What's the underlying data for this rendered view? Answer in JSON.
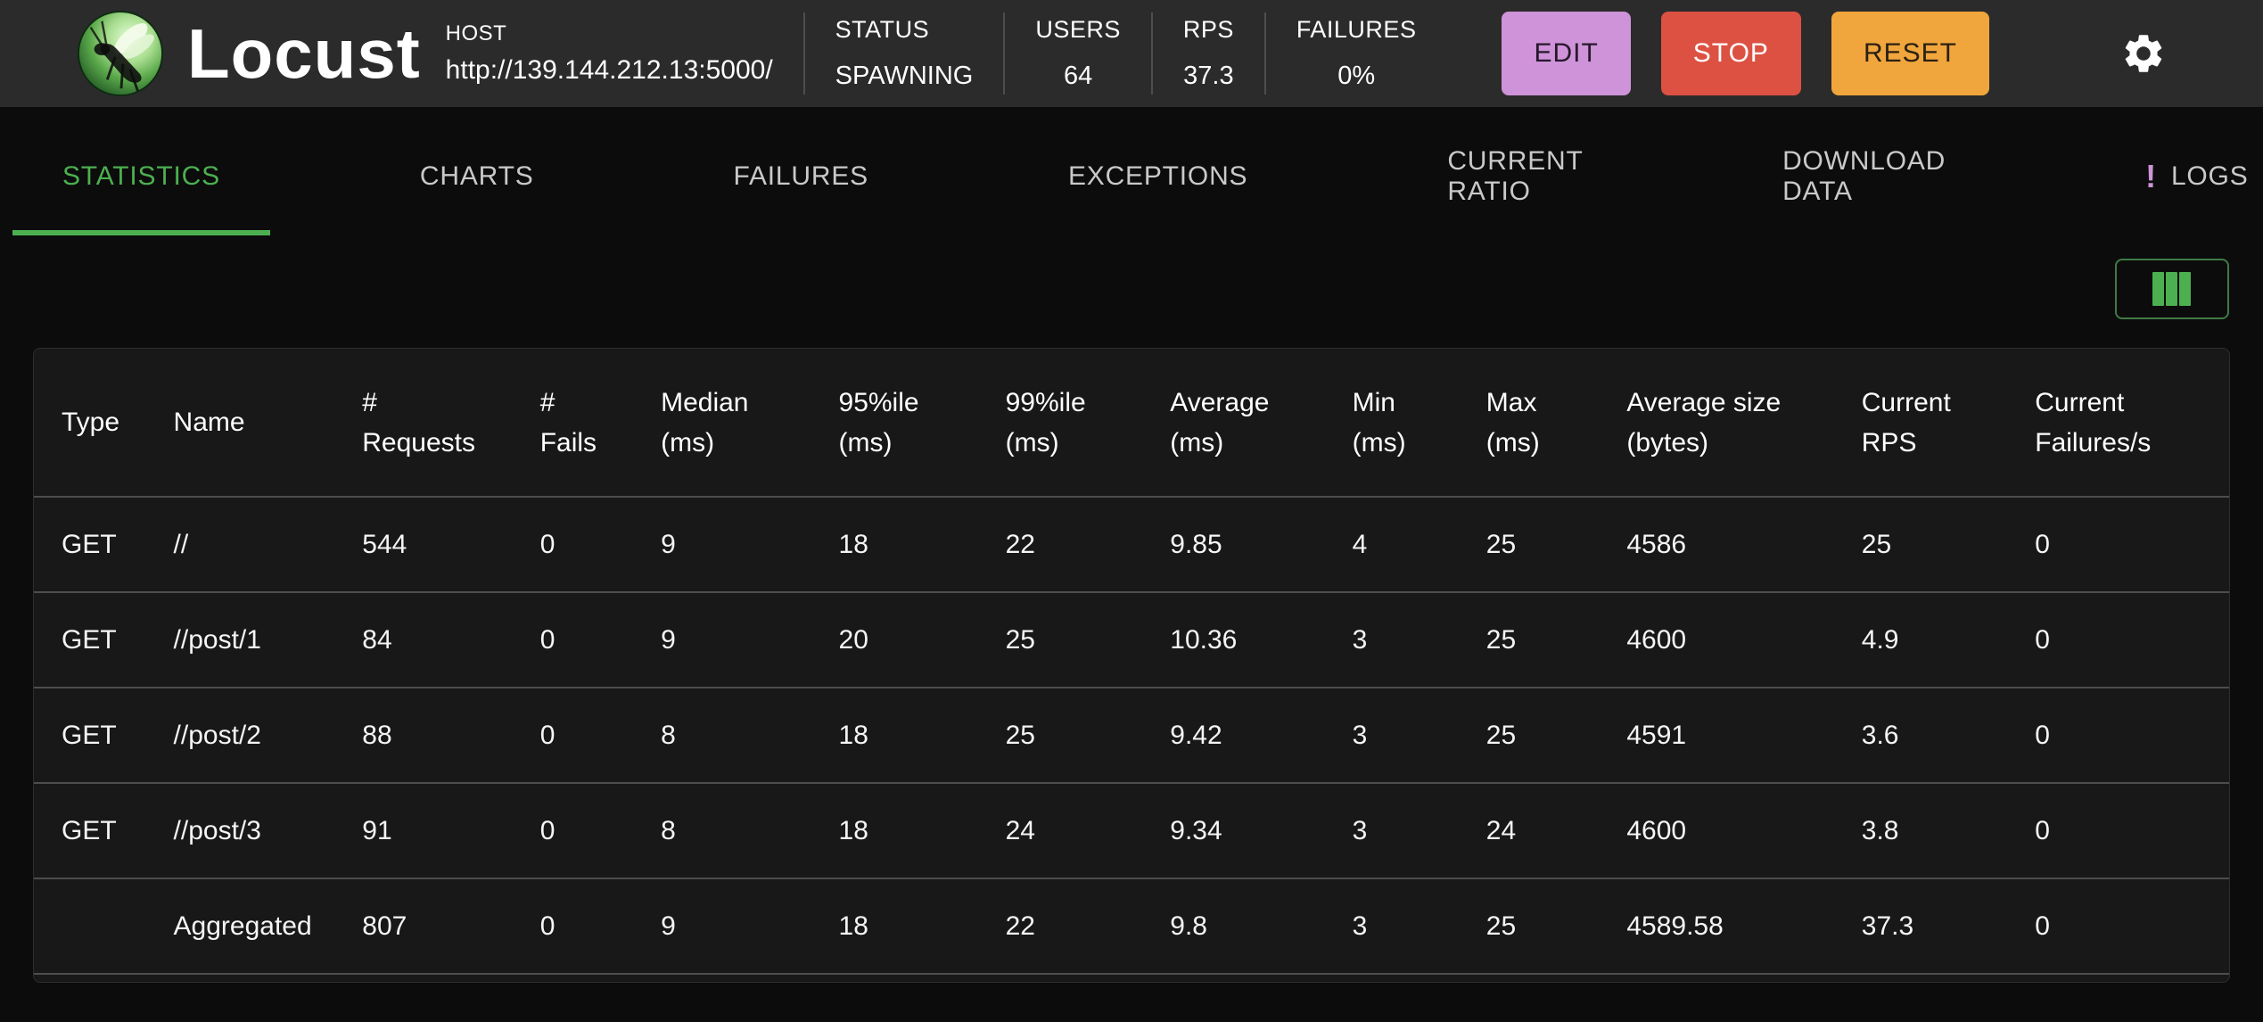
{
  "header": {
    "app_title": "Locust",
    "host_label": "HOST",
    "host_url": "http://139.144.212.13:5000/",
    "stats": [
      {
        "label": "STATUS",
        "value": "SPAWNING"
      },
      {
        "label": "USERS",
        "value": "64"
      },
      {
        "label": "RPS",
        "value": "37.3"
      },
      {
        "label": "FAILURES",
        "value": "0%"
      }
    ],
    "buttons": [
      {
        "label": "EDIT"
      },
      {
        "label": "STOP"
      },
      {
        "label": "RESET"
      }
    ],
    "icons": {
      "logo": "locust-logo",
      "settings": "gear-icon"
    }
  },
  "colors": {
    "accent_green": "#4caf50",
    "edit_purple": "#ce93d8",
    "stop_red": "#dd5143",
    "reset_orange": "#f0a63c",
    "header_bg": "#2b2b2b",
    "page_bg": "#0c0c0c",
    "table_bg": "#181818"
  },
  "tabs": [
    {
      "label": "STATISTICS",
      "active": true
    },
    {
      "label": "CHARTS"
    },
    {
      "label": "FAILURES"
    },
    {
      "label": "EXCEPTIONS"
    },
    {
      "label": "CURRENT RATIO"
    },
    {
      "label": "DOWNLOAD DATA"
    },
    {
      "label": "LOGS",
      "badge": "!"
    }
  ],
  "toolbar": {
    "columns_button_icon": "columns-icon"
  },
  "table": {
    "columns": [
      "Type",
      "Name",
      "# Requests",
      "# Fails",
      "Median (ms)",
      "95%ile (ms)",
      "99%ile (ms)",
      "Average (ms)",
      "Min (ms)",
      "Max (ms)",
      "Average size (bytes)",
      "Current RPS",
      "Current Failures/s"
    ],
    "rows": [
      [
        "GET",
        "//",
        "544",
        "0",
        "9",
        "18",
        "22",
        "9.85",
        "4",
        "25",
        "4586",
        "25",
        "0"
      ],
      [
        "GET",
        "//post/1",
        "84",
        "0",
        "9",
        "20",
        "25",
        "10.36",
        "3",
        "25",
        "4600",
        "4.9",
        "0"
      ],
      [
        "GET",
        "//post/2",
        "88",
        "0",
        "8",
        "18",
        "25",
        "9.42",
        "3",
        "25",
        "4591",
        "3.6",
        "0"
      ],
      [
        "GET",
        "//post/3",
        "91",
        "0",
        "8",
        "18",
        "24",
        "9.34",
        "3",
        "24",
        "4600",
        "3.8",
        "0"
      ],
      [
        "",
        "Aggregated",
        "807",
        "0",
        "9",
        "18",
        "22",
        "9.8",
        "3",
        "25",
        "4589.58",
        "37.3",
        "0"
      ]
    ]
  }
}
